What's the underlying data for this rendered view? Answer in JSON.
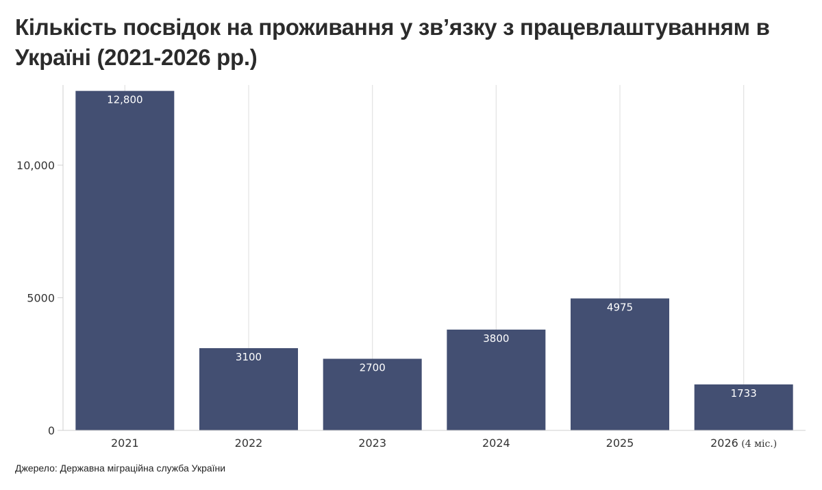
{
  "title": "Кількість посвідок на проживання у зв’язку з працевлаштуванням в Україні (2021-2026 рр.)",
  "source": "Джерело: Державна міграційна служба України",
  "colors": {
    "bar": "#434f72",
    "grid": "#e4e4e4",
    "axis": "#cfcfcf",
    "label_inside": "#ffffff",
    "tick": "#333333"
  },
  "chart_data": {
    "type": "bar",
    "title": "Кількість посвідок на проживання у зв’язку з працевлаштуванням в Україні (2021-2026 рр.)",
    "xlabel": "",
    "ylabel": "",
    "categories": [
      "2021",
      "2022",
      "2023",
      "2024",
      "2025",
      "2026"
    ],
    "category_suffix": [
      "",
      "",
      "",
      "",
      "",
      " (4 міс.)"
    ],
    "values": [
      12800,
      3100,
      2700,
      3800,
      4975,
      1733
    ],
    "value_labels": [
      "12,800",
      "3100",
      "2700",
      "3800",
      "4975",
      "1733"
    ],
    "ylim": [
      0,
      13000
    ],
    "yticks": [
      0,
      5000,
      10000
    ],
    "ytick_labels": [
      "0",
      "5000",
      "10,000"
    ],
    "grid": "vertical",
    "legend": "none"
  }
}
